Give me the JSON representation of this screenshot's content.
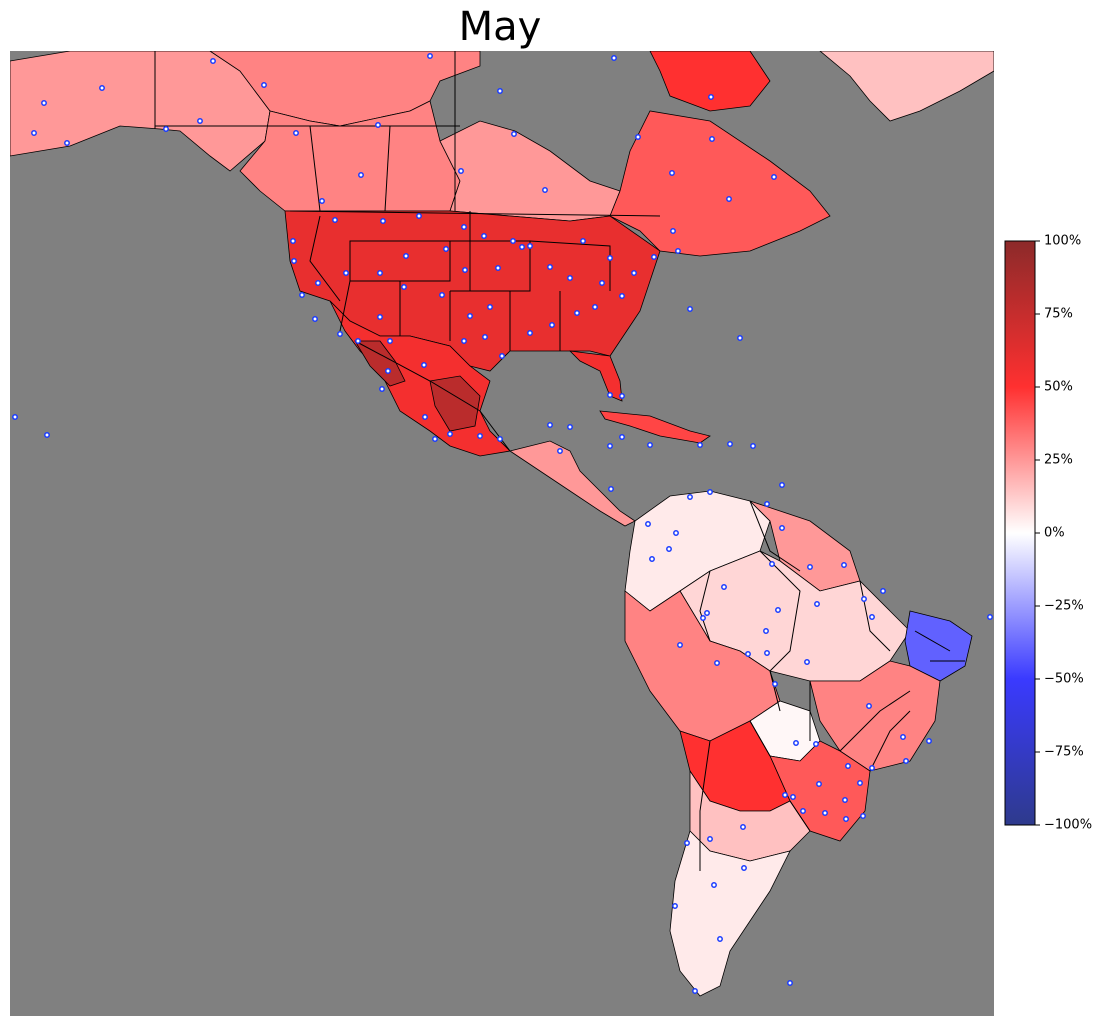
{
  "title": "May",
  "colors": {
    "ocean": "#808080",
    "land_default": "#ffb4b4",
    "border": "#000000",
    "station_fill": "#ffffff",
    "station_stroke": "#1a3cff",
    "scale": [
      "#2e3a8c",
      "#3a3aff",
      "#ffffff",
      "#ff3030",
      "#8c2a2a"
    ]
  },
  "colorbar": {
    "min_percent": -100,
    "max_percent": 100,
    "ticks": [
      "100%",
      "75%",
      "50%",
      "25%",
      "0%",
      "−25%",
      "−50%",
      "−75%",
      "−100%"
    ]
  },
  "regions": [
    {
      "name": "alaska-yukon",
      "percent": 25
    },
    {
      "name": "northwest-territories",
      "percent": 30
    },
    {
      "name": "western-canada",
      "percent": 30
    },
    {
      "name": "central-canada",
      "percent": 25
    },
    {
      "name": "quebec-maritimes",
      "percent": 40
    },
    {
      "name": "greenland",
      "percent": 15
    },
    {
      "name": "baffin-island",
      "percent": 50
    },
    {
      "name": "contiguous-usa",
      "percent": 60
    },
    {
      "name": "florida",
      "percent": 55
    },
    {
      "name": "mexico",
      "percent": 55
    },
    {
      "name": "northwest-mexico",
      "percent": 80
    },
    {
      "name": "central-mexico-dry",
      "percent": 80
    },
    {
      "name": "central-america",
      "percent": 25
    },
    {
      "name": "caribbean-islands",
      "percent": 45
    },
    {
      "name": "colombia-venezuela",
      "percent": 5
    },
    {
      "name": "guianas",
      "percent": 25
    },
    {
      "name": "amazon-basin",
      "percent": 10
    },
    {
      "name": "northeast-brazil",
      "percent": -40
    },
    {
      "name": "peru-bolivia",
      "percent": 30
    },
    {
      "name": "southeast-brazil",
      "percent": 30
    },
    {
      "name": "pantanal",
      "percent": 2
    },
    {
      "name": "paraguay-south-brazil",
      "percent": 40
    },
    {
      "name": "northern-chile-argentina",
      "percent": 50
    },
    {
      "name": "central-argentina",
      "percent": 15
    },
    {
      "name": "patagonia",
      "percent": 5
    }
  ]
}
